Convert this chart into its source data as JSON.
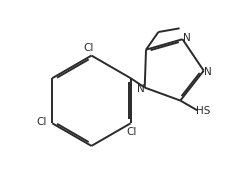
{
  "background": "#ffffff",
  "bond_color": "#2a2a2a",
  "text_color": "#2a2a2a",
  "bond_lw": 1.4,
  "dbo": 0.018,
  "figsize": [
    2.41,
    1.95
  ],
  "dpi": 100,
  "xlim": [
    -0.95,
    1.05
  ],
  "ylim": [
    -0.95,
    0.85
  ]
}
